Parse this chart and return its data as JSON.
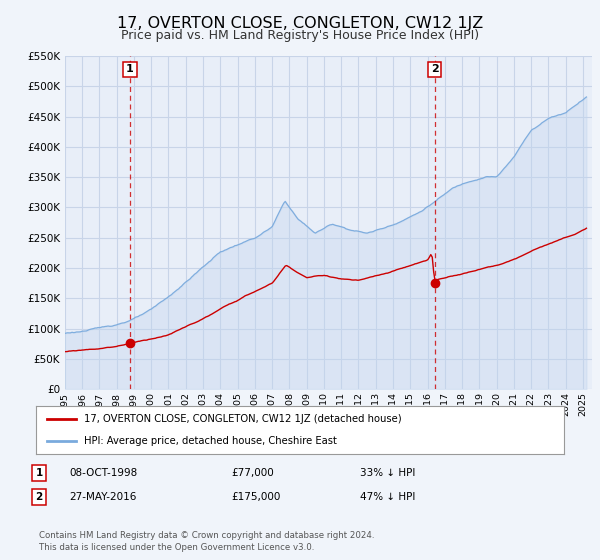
{
  "title": "17, OVERTON CLOSE, CONGLETON, CW12 1JZ",
  "subtitle": "Price paid vs. HM Land Registry's House Price Index (HPI)",
  "title_fontsize": 11.5,
  "subtitle_fontsize": 9,
  "bg_color": "#f0f4fa",
  "plot_bg_color": "#e8eef8",
  "grid_color": "#c8d4e8",
  "ylim": [
    0,
    550000
  ],
  "yticks": [
    0,
    50000,
    100000,
    150000,
    200000,
    250000,
    300000,
    350000,
    400000,
    450000,
    500000,
    550000
  ],
  "xlim_start": 1995.0,
  "xlim_end": 2025.5,
  "sale1_x": 1998.77,
  "sale1_y": 77000,
  "sale2_x": 2016.41,
  "sale2_y": 175000,
  "sale1_date": "08-OCT-1998",
  "sale1_price": "£77,000",
  "sale1_pct": "33% ↓ HPI",
  "sale2_date": "27-MAY-2016",
  "sale2_price": "£175,000",
  "sale2_pct": "47% ↓ HPI",
  "red_color": "#cc0000",
  "blue_color": "#7aaadd",
  "blue_fill_color": "#c0d4ee",
  "legend_label_red": "17, OVERTON CLOSE, CONGLETON, CW12 1JZ (detached house)",
  "legend_label_blue": "HPI: Average price, detached house, Cheshire East",
  "footer1": "Contains HM Land Registry data © Crown copyright and database right 2024.",
  "footer2": "This data is licensed under the Open Government Licence v3.0."
}
